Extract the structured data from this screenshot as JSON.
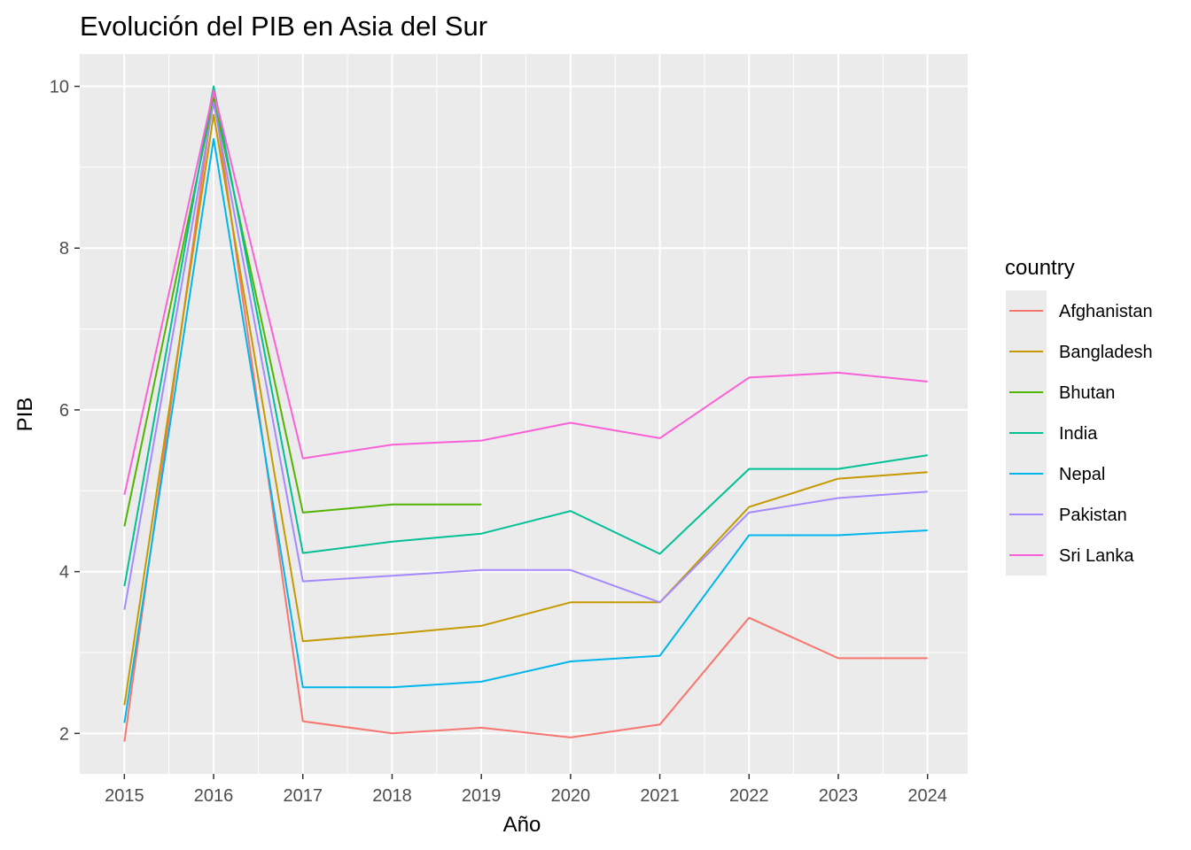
{
  "chart_data": {
    "type": "line",
    "title": "Evolución del PIB en Asia del Sur",
    "xlabel": "Año",
    "ylabel": "PIB",
    "xlim": [
      2014.5,
      2024.45
    ],
    "ylim": [
      1.5,
      10.4
    ],
    "x_ticks": [
      2015,
      2016,
      2017,
      2018,
      2019,
      2020,
      2021,
      2022,
      2023,
      2024
    ],
    "y_ticks": [
      2,
      4,
      6,
      8,
      10
    ],
    "grid": true,
    "legend": {
      "title": "country",
      "position": "right"
    },
    "series": [
      {
        "name": "Afghanistan",
        "color": "#F8766D",
        "x": [
          2015,
          2016,
          2017,
          2018,
          2019,
          2020,
          2021,
          2022,
          2023,
          2024
        ],
        "y": [
          1.9,
          9.9,
          2.15,
          2.0,
          2.07,
          1.95,
          2.11,
          3.43,
          2.93,
          2.93
        ]
      },
      {
        "name": "Bangladesh",
        "color": "#C49A00",
        "x": [
          2015,
          2016,
          2017,
          2018,
          2019,
          2020,
          2021,
          2022,
          2023,
          2024
        ],
        "y": [
          2.35,
          9.65,
          3.14,
          3.23,
          3.33,
          3.62,
          3.62,
          4.8,
          5.15,
          5.23
        ]
      },
      {
        "name": "Bhutan",
        "color": "#53B400",
        "x": [
          2015,
          2016,
          2017,
          2018,
          2019
        ],
        "y": [
          4.56,
          9.85,
          4.73,
          4.83,
          4.83
        ]
      },
      {
        "name": "India",
        "color": "#00C094",
        "x": [
          2015,
          2016,
          2017,
          2018,
          2019,
          2020,
          2021,
          2022,
          2023,
          2024
        ],
        "y": [
          3.82,
          10.0,
          4.23,
          4.37,
          4.47,
          4.75,
          4.22,
          5.27,
          5.27,
          5.44
        ]
      },
      {
        "name": "Nepal",
        "color": "#00B6EB",
        "x": [
          2015,
          2016,
          2017,
          2018,
          2019,
          2020,
          2021,
          2022,
          2023,
          2024
        ],
        "y": [
          2.13,
          9.35,
          2.57,
          2.57,
          2.64,
          2.89,
          2.96,
          4.45,
          4.45,
          4.51
        ]
      },
      {
        "name": "Pakistan",
        "color": "#A58AFF",
        "x": [
          2015,
          2016,
          2017,
          2018,
          2019,
          2020,
          2021,
          2022,
          2023,
          2024
        ],
        "y": [
          3.53,
          9.8,
          3.88,
          3.95,
          4.02,
          4.02,
          3.62,
          4.73,
          4.91,
          4.99
        ]
      },
      {
        "name": "Sri Lanka",
        "color": "#FB61D7",
        "x": [
          2015,
          2016,
          2017,
          2018,
          2019,
          2020,
          2021,
          2022,
          2023,
          2024
        ],
        "y": [
          4.95,
          9.95,
          5.4,
          5.57,
          5.62,
          5.84,
          5.65,
          6.4,
          6.46,
          6.35
        ]
      }
    ]
  }
}
